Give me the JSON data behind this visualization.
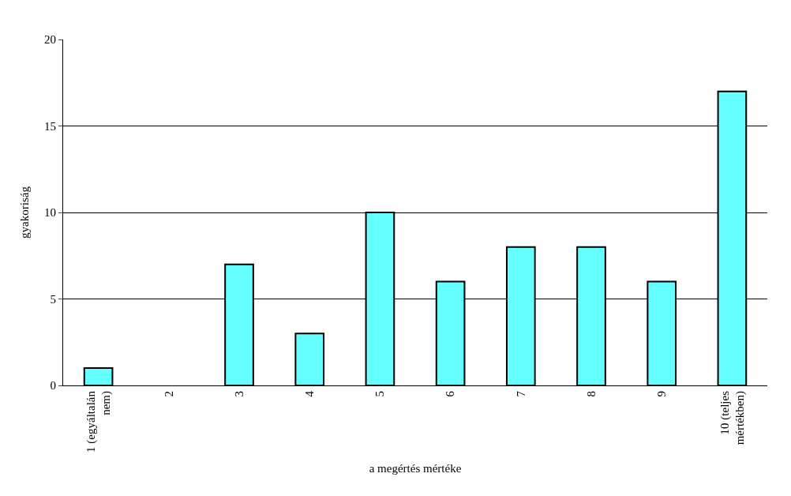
{
  "chart_data": {
    "type": "bar",
    "xlabel": "a megértés mértéke",
    "ylabel": "gyakoriság",
    "categories": [
      "1 (egyáltalán nem)",
      "2",
      "3",
      "4",
      "5",
      "6",
      "7",
      "8",
      "9",
      "10 (teljes mértékben)"
    ],
    "values": [
      1,
      0,
      7,
      3,
      10,
      6,
      8,
      8,
      6,
      17
    ],
    "color": "#66ffff",
    "ylim": [
      0,
      20
    ],
    "yticks": [
      0,
      5,
      10,
      15,
      20
    ],
    "grid": "y"
  }
}
